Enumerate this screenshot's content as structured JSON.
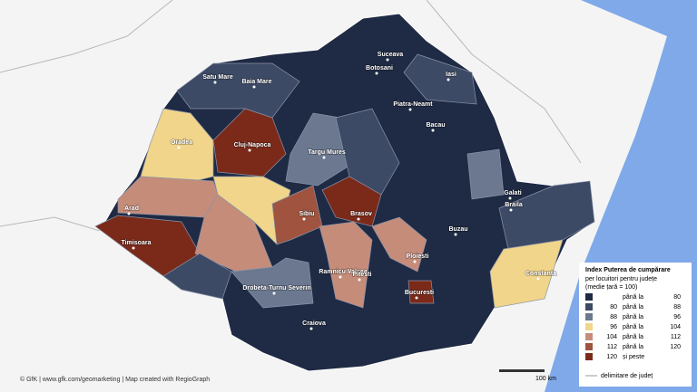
{
  "cities": [
    "Botosani",
    "Suceava",
    "Iasi",
    "Satu Mare",
    "Baia Mare",
    "Piatra-Neamt",
    "Bacau",
    "Oradea",
    "Cluj-Napoca",
    "Targu Mures",
    "Galati",
    "Braila",
    "Arad",
    "Sibiu",
    "Brasov",
    "Timisoara",
    "Buzau",
    "Ramnicu Valcea",
    "Ploiesti",
    "Pitesti",
    "Constanta",
    "Bucuresti",
    "Drobeta-Turnu Severin",
    "Craiova"
  ],
  "legend": {
    "title": "Index Puterea de cumpărare",
    "subtitle": "per locuitori pentru județe",
    "note": "(medie țară = 100)",
    "rows": [
      {
        "color": "#1f2a44",
        "text": "până la",
        "to": 80
      },
      {
        "color": "#3d4a66",
        "from": 80,
        "text": "până la",
        "to": 88
      },
      {
        "color": "#6b7890",
        "from": 88,
        "text": "până la",
        "to": 96
      },
      {
        "color": "#f0d58a",
        "from": 96,
        "text": "până la",
        "to": 104
      },
      {
        "color": "#c58c7a",
        "from": 104,
        "text": "până la",
        "to": 112
      },
      {
        "color": "#a0533e",
        "from": 112,
        "text": "până la",
        "to": 120
      },
      {
        "color": "#7b2a1a",
        "from": 120,
        "text": "și peste"
      }
    ],
    "border_label": "delimitare de județ"
  },
  "scale": "100 km",
  "credits": "© GfK | www.gfk.com/geomarketing | Map created with RegioGraph"
}
